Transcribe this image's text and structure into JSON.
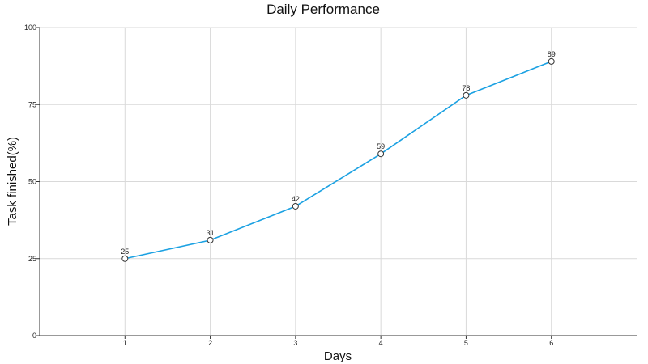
{
  "chart_data": {
    "type": "line",
    "title": "Daily Performance",
    "xlabel": "Days",
    "ylabel": "Task finished(%)",
    "x": [
      1,
      2,
      3,
      4,
      5,
      6
    ],
    "series": [
      {
        "values": [
          25,
          31,
          42,
          59,
          78,
          89
        ],
        "color": "#1ba1e2"
      }
    ],
    "xlim": [
      0,
      7
    ],
    "ylim": [
      0,
      100
    ],
    "yticks": [
      0,
      25,
      50,
      75,
      100
    ],
    "xticks": [
      1,
      2,
      3,
      4,
      5,
      6
    ],
    "grid": true,
    "data_labels": true,
    "legend": "none"
  }
}
